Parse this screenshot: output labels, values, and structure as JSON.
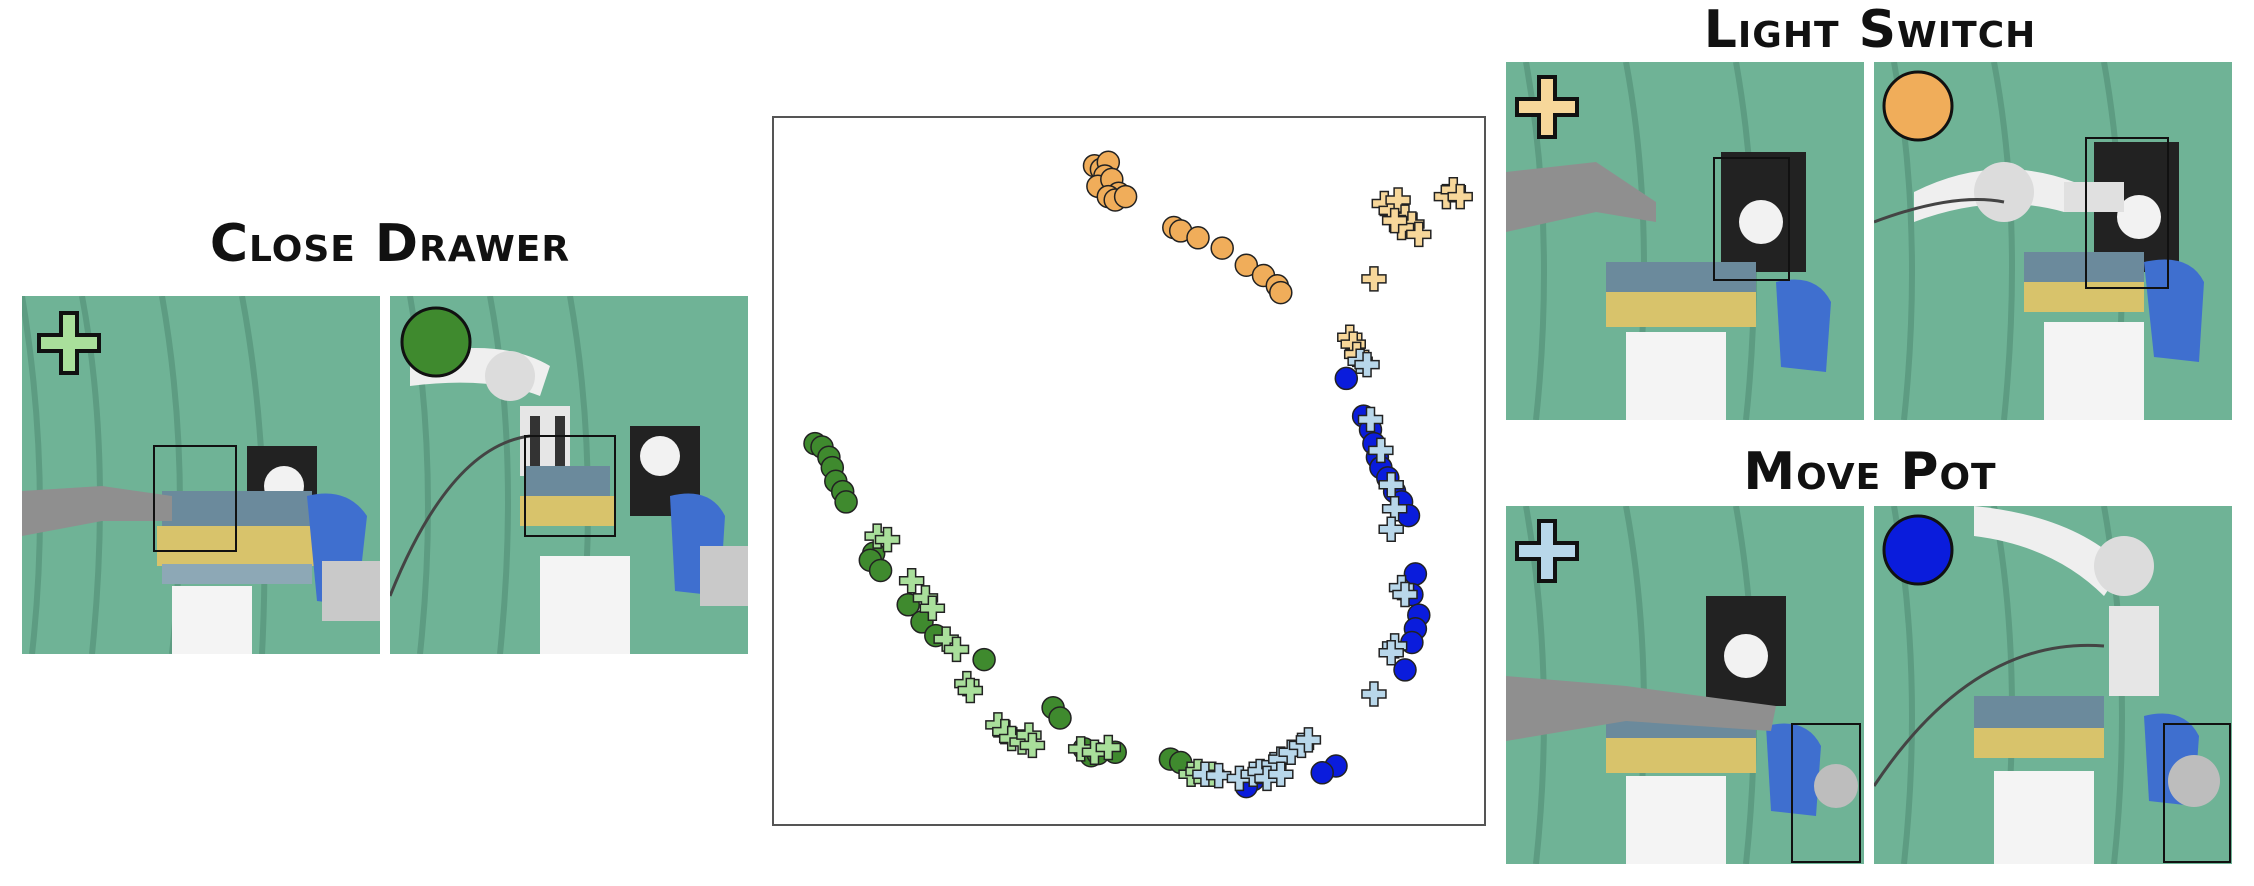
{
  "panels": {
    "close_drawer": {
      "title": "Close Drawer"
    },
    "light_switch": {
      "title": "Light Switch"
    },
    "move_pot": {
      "title": "Move Pot"
    }
  },
  "colors": {
    "close_drawer_human": "#a9df9b",
    "close_drawer_robot": "#3f8a2e",
    "light_switch_human": "#f7d79a",
    "light_switch_robot": "#f0ad5a",
    "move_pot_human": "#b8d7ea",
    "move_pot_robot": "#0a1cdc",
    "curtain": "#6fb396",
    "marker_edge": "#222222"
  },
  "icons": {
    "human_marker": "plus-marker-icon",
    "robot_marker": "circle-marker-icon"
  },
  "chart_data": {
    "type": "scatter",
    "title": "",
    "xlabel": "",
    "ylabel": "",
    "grid": false,
    "legend": "none",
    "xlim": [
      0,
      100
    ],
    "ylim": [
      0,
      100
    ],
    "series": [
      {
        "task": "close_drawer",
        "marker": "circle",
        "color": "#3f8a2e",
        "points": [
          [
            4.5,
            54
          ],
          [
            5.5,
            53.5
          ],
          [
            6.5,
            52
          ],
          [
            7,
            50.5
          ],
          [
            7.5,
            48.5
          ],
          [
            8.5,
            47
          ],
          [
            9,
            45.5
          ],
          [
            13,
            38
          ],
          [
            12.5,
            37
          ],
          [
            14,
            35.5
          ],
          [
            18,
            30.5
          ],
          [
            20,
            28
          ],
          [
            22,
            26
          ],
          [
            29,
            22.5
          ],
          [
            39,
            15.5
          ],
          [
            40,
            14
          ],
          [
            43.5,
            9.5
          ],
          [
            44.5,
            8.5
          ],
          [
            45.5,
            8.8
          ],
          [
            48,
            9
          ],
          [
            56,
            8
          ],
          [
            57.5,
            7.5
          ]
        ]
      },
      {
        "task": "close_drawer",
        "marker": "plus",
        "color": "#a9df9b",
        "points": [
          [
            13.5,
            40.5
          ],
          [
            15,
            40
          ],
          [
            18.5,
            34
          ],
          [
            20.5,
            31.5
          ],
          [
            21.5,
            30
          ],
          [
            23.5,
            25.5
          ],
          [
            25,
            24
          ],
          [
            26.5,
            19
          ],
          [
            27,
            18
          ],
          [
            31,
            13
          ],
          [
            32,
            12
          ],
          [
            33,
            11
          ],
          [
            34.5,
            10.5
          ],
          [
            35.5,
            11.5
          ],
          [
            36,
            10
          ],
          [
            43,
            9.5
          ],
          [
            45,
            9
          ],
          [
            47,
            9.7
          ],
          [
            59,
            5.8
          ],
          [
            60,
            6.2
          ],
          [
            62,
            5.8
          ]
        ]
      },
      {
        "task": "light_switch",
        "marker": "circle",
        "color": "#f0ad5a",
        "points": [
          [
            45,
            94.5
          ],
          [
            46,
            94
          ],
          [
            47,
            95
          ],
          [
            46.5,
            93
          ],
          [
            45.5,
            91.5
          ],
          [
            47.5,
            92.5
          ],
          [
            48.5,
            90.5
          ],
          [
            47,
            90
          ],
          [
            48,
            89.5
          ],
          [
            49.5,
            90
          ],
          [
            56.5,
            85.5
          ],
          [
            57.5,
            85
          ],
          [
            60,
            84
          ],
          [
            63.5,
            82.5
          ],
          [
            67,
            80
          ],
          [
            69.5,
            78.5
          ],
          [
            71.5,
            77
          ],
          [
            72,
            76
          ]
        ]
      },
      {
        "task": "light_switch",
        "marker": "plus",
        "color": "#f7d79a",
        "points": [
          [
            87,
            89
          ],
          [
            88,
            88
          ],
          [
            89,
            89.5
          ],
          [
            90,
            87
          ],
          [
            91,
            86
          ],
          [
            89.5,
            85.5
          ],
          [
            88.5,
            86.5
          ],
          [
            92,
            84.5
          ],
          [
            96,
            90
          ],
          [
            97,
            91
          ],
          [
            98,
            90
          ],
          [
            85.5,
            78
          ],
          [
            82,
            69.5
          ],
          [
            82.5,
            68.5
          ],
          [
            83,
            67
          ]
        ]
      },
      {
        "task": "move_pot",
        "marker": "circle",
        "color": "#0a1cdc",
        "points": [
          [
            81.5,
            63.5
          ],
          [
            84,
            58
          ],
          [
            85,
            56
          ],
          [
            85.5,
            54
          ],
          [
            86,
            52
          ],
          [
            86.5,
            50.5
          ],
          [
            87.5,
            49
          ],
          [
            88.5,
            47
          ],
          [
            89.5,
            45.5
          ],
          [
            90.5,
            43.5
          ],
          [
            91.5,
            35
          ],
          [
            91,
            32
          ],
          [
            92,
            29
          ],
          [
            91.5,
            27
          ],
          [
            91,
            25
          ],
          [
            90,
            21
          ],
          [
            80,
            7
          ],
          [
            78,
            6
          ],
          [
            68,
            5
          ],
          [
            67,
            4
          ]
        ]
      },
      {
        "task": "move_pot",
        "marker": "plus",
        "color": "#b8d7ea",
        "points": [
          [
            83.5,
            66
          ],
          [
            84.5,
            65.5
          ],
          [
            85,
            57.5
          ],
          [
            86.5,
            53
          ],
          [
            88,
            48
          ],
          [
            88.5,
            44.5
          ],
          [
            88,
            41.5
          ],
          [
            89.5,
            33
          ],
          [
            90,
            32
          ],
          [
            88.5,
            24.5
          ],
          [
            88,
            23.5
          ],
          [
            85.5,
            17.5
          ],
          [
            61,
            5.8
          ],
          [
            63,
            5.6
          ],
          [
            66,
            5.2
          ],
          [
            68,
            5.8
          ],
          [
            69,
            6.2
          ],
          [
            71,
            7.2
          ],
          [
            72,
            8
          ],
          [
            73.5,
            9
          ],
          [
            75,
            10
          ],
          [
            76,
            10.8
          ],
          [
            70,
            5.2
          ],
          [
            72,
            5.8
          ]
        ]
      }
    ]
  }
}
